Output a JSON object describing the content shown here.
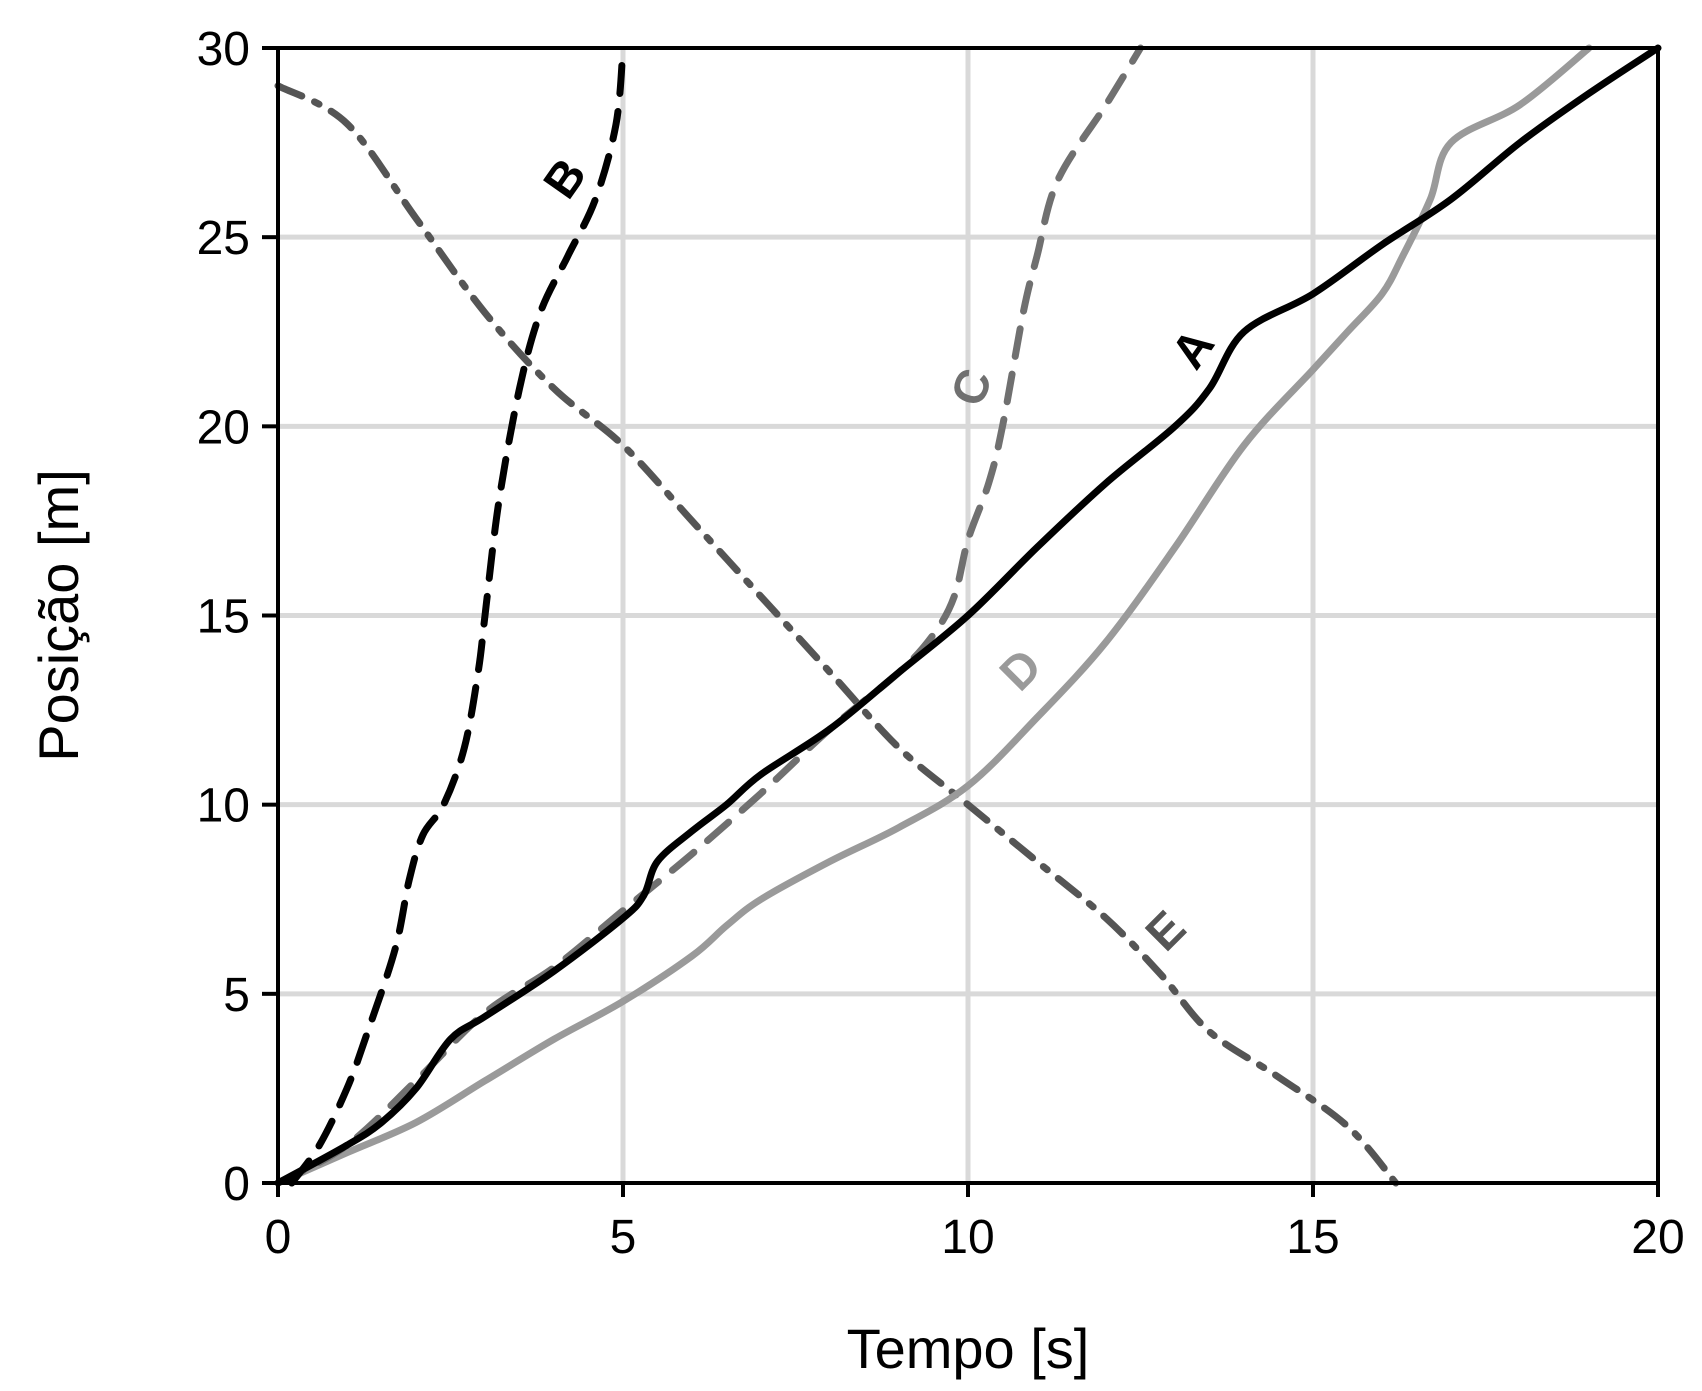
{
  "chart_data": {
    "type": "line",
    "title": "",
    "xlabel": "Tempo [s]",
    "ylabel": "Posição [m]",
    "xlim": [
      0,
      20
    ],
    "ylim": [
      0,
      30
    ],
    "grid": true,
    "x_ticks": [
      0,
      5,
      10,
      15,
      20
    ],
    "y_ticks": [
      0,
      5,
      10,
      15,
      20,
      25,
      30
    ],
    "x_tick_labels": [
      "0",
      "5",
      "10",
      "15",
      "20"
    ],
    "y_tick_labels": [
      "0",
      "5",
      "10",
      "15",
      "20",
      "25",
      "30"
    ],
    "series": [
      {
        "name": "A",
        "color": "#000000",
        "style": "solid",
        "points": [
          [
            0,
            0
          ],
          [
            1,
            1
          ],
          [
            1.5,
            1.6
          ],
          [
            2,
            2.5
          ],
          [
            2.5,
            3.8
          ],
          [
            3,
            4.4
          ],
          [
            4,
            5.6
          ],
          [
            5,
            7
          ],
          [
            5.3,
            7.6
          ],
          [
            5.5,
            8.5
          ],
          [
            6,
            9.3
          ],
          [
            6.5,
            10
          ],
          [
            7,
            10.8
          ],
          [
            8,
            12
          ],
          [
            9,
            13.5
          ],
          [
            10,
            15
          ],
          [
            11,
            16.8
          ],
          [
            12,
            18.5
          ],
          [
            13,
            20
          ],
          [
            13.5,
            21
          ],
          [
            14,
            22.5
          ],
          [
            15,
            23.5
          ],
          [
            16,
            24.8
          ],
          [
            17,
            26
          ],
          [
            18,
            27.5
          ],
          [
            19,
            28.8
          ],
          [
            20,
            30
          ]
        ]
      },
      {
        "name": "B",
        "color": "#000000",
        "style": "dashed",
        "points": [
          [
            0.2,
            0
          ],
          [
            0.6,
            1
          ],
          [
            1,
            2.5
          ],
          [
            1.3,
            4
          ],
          [
            1.7,
            6.2
          ],
          [
            1.9,
            8
          ],
          [
            2.1,
            9.2
          ],
          [
            2.4,
            10
          ],
          [
            2.7,
            11.5
          ],
          [
            2.9,
            13.5
          ],
          [
            3,
            15
          ],
          [
            3.2,
            18
          ],
          [
            3.5,
            21
          ],
          [
            3.8,
            23
          ],
          [
            4.2,
            24.5
          ],
          [
            4.6,
            26
          ],
          [
            4.9,
            28
          ],
          [
            5,
            30
          ]
        ]
      },
      {
        "name": "C",
        "color": "#707070",
        "style": "dashed",
        "points": [
          [
            0,
            0
          ],
          [
            1,
            1
          ],
          [
            2,
            2.7
          ],
          [
            3,
            4.5
          ],
          [
            4,
            5.7
          ],
          [
            5,
            7.2
          ],
          [
            6,
            8.7
          ],
          [
            7,
            10.3
          ],
          [
            8,
            12
          ],
          [
            9,
            13.5
          ],
          [
            9.5,
            14.5
          ],
          [
            9.8,
            15.5
          ],
          [
            10,
            17
          ],
          [
            10.3,
            18.5
          ],
          [
            10.5,
            20
          ],
          [
            10.8,
            23
          ],
          [
            11,
            24.5
          ],
          [
            11.3,
            26.5
          ],
          [
            12,
            28.5
          ],
          [
            12.5,
            30
          ]
        ]
      },
      {
        "name": "D",
        "color": "#9a9a9a",
        "style": "solid",
        "points": [
          [
            0,
            0
          ],
          [
            1,
            0.8
          ],
          [
            2,
            1.6
          ],
          [
            3,
            2.7
          ],
          [
            4,
            3.8
          ],
          [
            5,
            4.8
          ],
          [
            6,
            6
          ],
          [
            6.5,
            6.8
          ],
          [
            7,
            7.5
          ],
          [
            8,
            8.5
          ],
          [
            9,
            9.4
          ],
          [
            10,
            10.5
          ],
          [
            11,
            12.3
          ],
          [
            12,
            14.3
          ],
          [
            13,
            16.8
          ],
          [
            14,
            19.5
          ],
          [
            15,
            21.5
          ],
          [
            15.5,
            22.5
          ],
          [
            16,
            23.5
          ],
          [
            16.3,
            24.5
          ],
          [
            16.7,
            26
          ],
          [
            17,
            27.5
          ],
          [
            18,
            28.5
          ],
          [
            19,
            30
          ]
        ]
      },
      {
        "name": "E",
        "color": "#555555",
        "style": "dashdot",
        "points": [
          [
            0,
            29
          ],
          [
            1,
            28
          ],
          [
            2,
            25.5
          ],
          [
            3,
            23
          ],
          [
            4,
            21
          ],
          [
            5,
            19.5
          ],
          [
            6,
            17.5
          ],
          [
            7,
            15.5
          ],
          [
            8,
            13.5
          ],
          [
            9,
            11.5
          ],
          [
            10,
            10
          ],
          [
            11,
            8.5
          ],
          [
            12,
            7
          ],
          [
            12.8,
            5.5
          ],
          [
            13.5,
            4
          ],
          [
            14.5,
            2.8
          ],
          [
            15.5,
            1.5
          ],
          [
            16.2,
            0
          ]
        ]
      }
    ],
    "annotations": [
      {
        "text": "A",
        "x": 13.3,
        "y": 22,
        "color": "#000000",
        "rotation": -55
      },
      {
        "text": "B",
        "x": 4.2,
        "y": 26.5,
        "color": "#000000",
        "rotation": -55
      },
      {
        "text": "C",
        "x": 10.1,
        "y": 21,
        "color": "#707070",
        "rotation": -70
      },
      {
        "text": "D",
        "x": 10.8,
        "y": 13.5,
        "color": "#9a9a9a",
        "rotation": -45
      },
      {
        "text": "E",
        "x": 12.9,
        "y": 6.6,
        "color": "#555555",
        "rotation": -45
      }
    ]
  }
}
